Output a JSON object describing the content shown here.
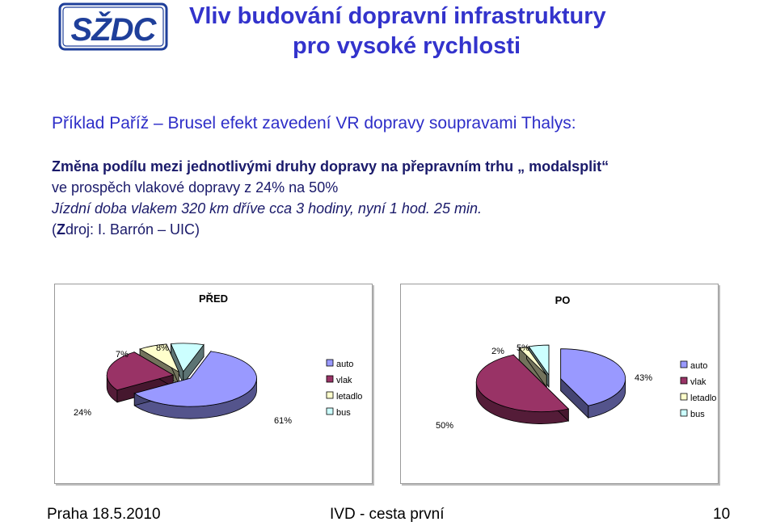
{
  "logo": {
    "text": "SŽDC"
  },
  "title": {
    "line1": "Vliv budování dopravní infrastruktury",
    "line2": "pro vysoké rychlosti"
  },
  "example": "Příklad  Paříž – Brusel efekt zavedení VR dopravy soupravami Thalys:",
  "body": {
    "line1": "Změna podílu mezi jednotlivými druhy dopravy na přepravním trhu „ modalsplit“",
    "line2": "ve prospěch vlakové dopravy z 24% na 50%",
    "line3": "Jízdní doba vlakem 320 km dříve cca 3 hodiny,  nyní 1 hod. 25 min.",
    "line4_prefix": "(",
    "line4_bold": "Z",
    "line4_rest": "droj: I. Barrón – UIC)"
  },
  "colors": {
    "title": "#3333cc",
    "auto": "#9999ff",
    "vlak": "#993366",
    "letadlo": "#ffffcc",
    "bus": "#ccffff"
  },
  "chart_data": [
    {
      "type": "pie",
      "title": "PŘED",
      "categories": [
        "auto",
        "vlak",
        "letadlo",
        "bus"
      ],
      "values": [
        61,
        24,
        7,
        8
      ],
      "data_labels": [
        "61%",
        "24%",
        "7%",
        "8%"
      ],
      "legend": [
        "auto",
        "vlak",
        "letadlo",
        "bus"
      ],
      "legend_position": "right",
      "style": "3d-exploded"
    },
    {
      "type": "pie",
      "title": "PO",
      "categories": [
        "auto",
        "vlak",
        "letadlo",
        "bus"
      ],
      "values": [
        43,
        50,
        2,
        5
      ],
      "data_labels": [
        "43%",
        "50%",
        "2%",
        "5%"
      ],
      "legend": [
        "auto",
        "vlak",
        "letadlo",
        "bus"
      ],
      "legend_position": "right",
      "style": "3d-exploded"
    }
  ],
  "footer": {
    "left": "Praha 18.5.2010",
    "center": "IVD - cesta první",
    "page": "10"
  }
}
